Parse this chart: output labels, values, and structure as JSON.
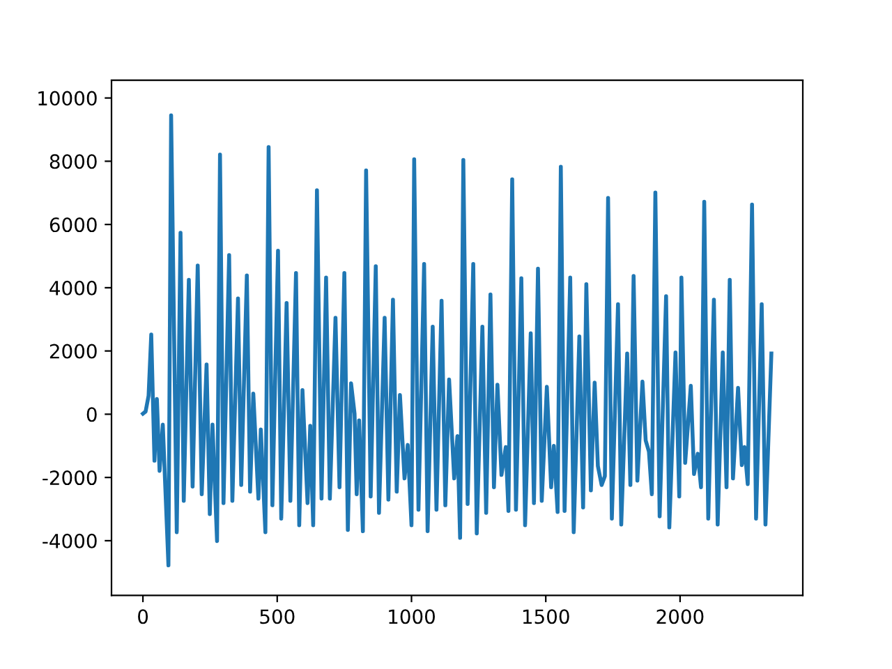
{
  "chart_data": {
    "type": "line",
    "x": [
      0,
      10,
      21,
      31,
      43,
      52,
      62,
      74,
      95,
      105,
      126,
      140,
      152,
      171,
      185,
      204,
      219,
      237,
      249,
      259,
      276,
      287,
      300,
      321,
      333,
      354,
      366,
      387,
      399,
      411,
      430,
      439,
      456,
      468,
      482,
      503,
      515,
      535,
      549,
      570,
      582,
      594,
      613,
      623,
      634,
      648,
      665,
      682,
      696,
      717,
      732,
      750,
      763,
      775,
      788,
      796,
      805,
      819,
      831,
      848,
      867,
      879,
      900,
      914,
      931,
      945,
      957,
      974,
      986,
      1000,
      1010,
      1026,
      1047,
      1060,
      1079,
      1093,
      1112,
      1126,
      1140,
      1159,
      1171,
      1181,
      1193,
      1209,
      1230,
      1243,
      1264,
      1278,
      1294,
      1307,
      1320,
      1335,
      1351,
      1361,
      1375,
      1389,
      1409,
      1423,
      1444,
      1456,
      1471,
      1485,
      1504,
      1520,
      1530,
      1544,
      1556,
      1570,
      1591,
      1604,
      1625,
      1639,
      1651,
      1668,
      1682,
      1694,
      1708,
      1720,
      1732,
      1746,
      1769,
      1781,
      1803,
      1815,
      1827,
      1841,
      1860,
      1872,
      1884,
      1895,
      1908,
      1924,
      1948,
      1960,
      1983,
      1997,
      2005,
      2019,
      2040,
      2052,
      2066,
      2078,
      2090,
      2105,
      2126,
      2140,
      2159,
      2173,
      2185,
      2197,
      2216,
      2230,
      2240,
      2252,
      2268,
      2283,
      2304,
      2318,
      2340
    ],
    "series": [
      {
        "color": "#1f77b4",
        "values": [
          16,
          85,
          580,
          2520,
          -1470,
          480,
          -1790,
          -330,
          -4780,
          9450,
          -3730,
          5740,
          -2740,
          4250,
          -2290,
          4700,
          -2530,
          1570,
          -3160,
          -330,
          -4010,
          8210,
          -2810,
          5030,
          -2740,
          3660,
          -2240,
          4390,
          -2450,
          650,
          -2670,
          -480,
          -3730,
          8450,
          -2880,
          5170,
          -3300,
          3520,
          -2740,
          4465,
          -3510,
          765,
          -2810,
          -365,
          -3510,
          7080,
          -2670,
          4320,
          -2670,
          3050,
          -2310,
          4466,
          -3660,
          977,
          17,
          -2530,
          -194,
          -3700,
          7710,
          -2600,
          4680,
          -3120,
          3050,
          -2700,
          3620,
          -2450,
          610,
          -2030,
          -970,
          -3510,
          8060,
          -3020,
          4750,
          -3700,
          2770,
          -3020,
          3590,
          -2880,
          1100,
          -2030,
          -690,
          -3910,
          8040,
          -2840,
          4750,
          -3770,
          2770,
          -3120,
          3790,
          -2310,
          935,
          -1920,
          -1040,
          -3060,
          7430,
          -3020,
          4300,
          -3510,
          2560,
          -2810,
          4600,
          -2740,
          865,
          -2310,
          -1000,
          -3090,
          7825,
          -3060,
          4320,
          -3730,
          2460,
          -2950,
          4110,
          -2410,
          1000,
          -1640,
          -2240,
          -1960,
          6840,
          -3300,
          3480,
          -3490,
          1920,
          -2240,
          4370,
          -2100,
          1030,
          -830,
          -1180,
          -2530,
          7010,
          -3230,
          3730,
          -3580,
          1950,
          -2600,
          4320,
          -1540,
          900,
          -1890,
          -1250,
          -2310,
          6720,
          -3300,
          3620,
          -3490,
          1950,
          -2310,
          4250,
          -2030,
          835,
          -1610,
          -1040,
          -2210,
          6630,
          -3300,
          3480,
          -3490,
          1920
        ]
      }
    ],
    "xlim": [
      -117,
      2457
    ],
    "ylim": [
      -5730,
      10560
    ],
    "xticks": [
      0,
      500,
      1000,
      1500,
      2000
    ],
    "yticks": [
      -4000,
      -2000,
      0,
      2000,
      4000,
      6000,
      8000,
      10000
    ],
    "grid": false,
    "legend": false,
    "marker": "none",
    "line_style": "solid"
  }
}
